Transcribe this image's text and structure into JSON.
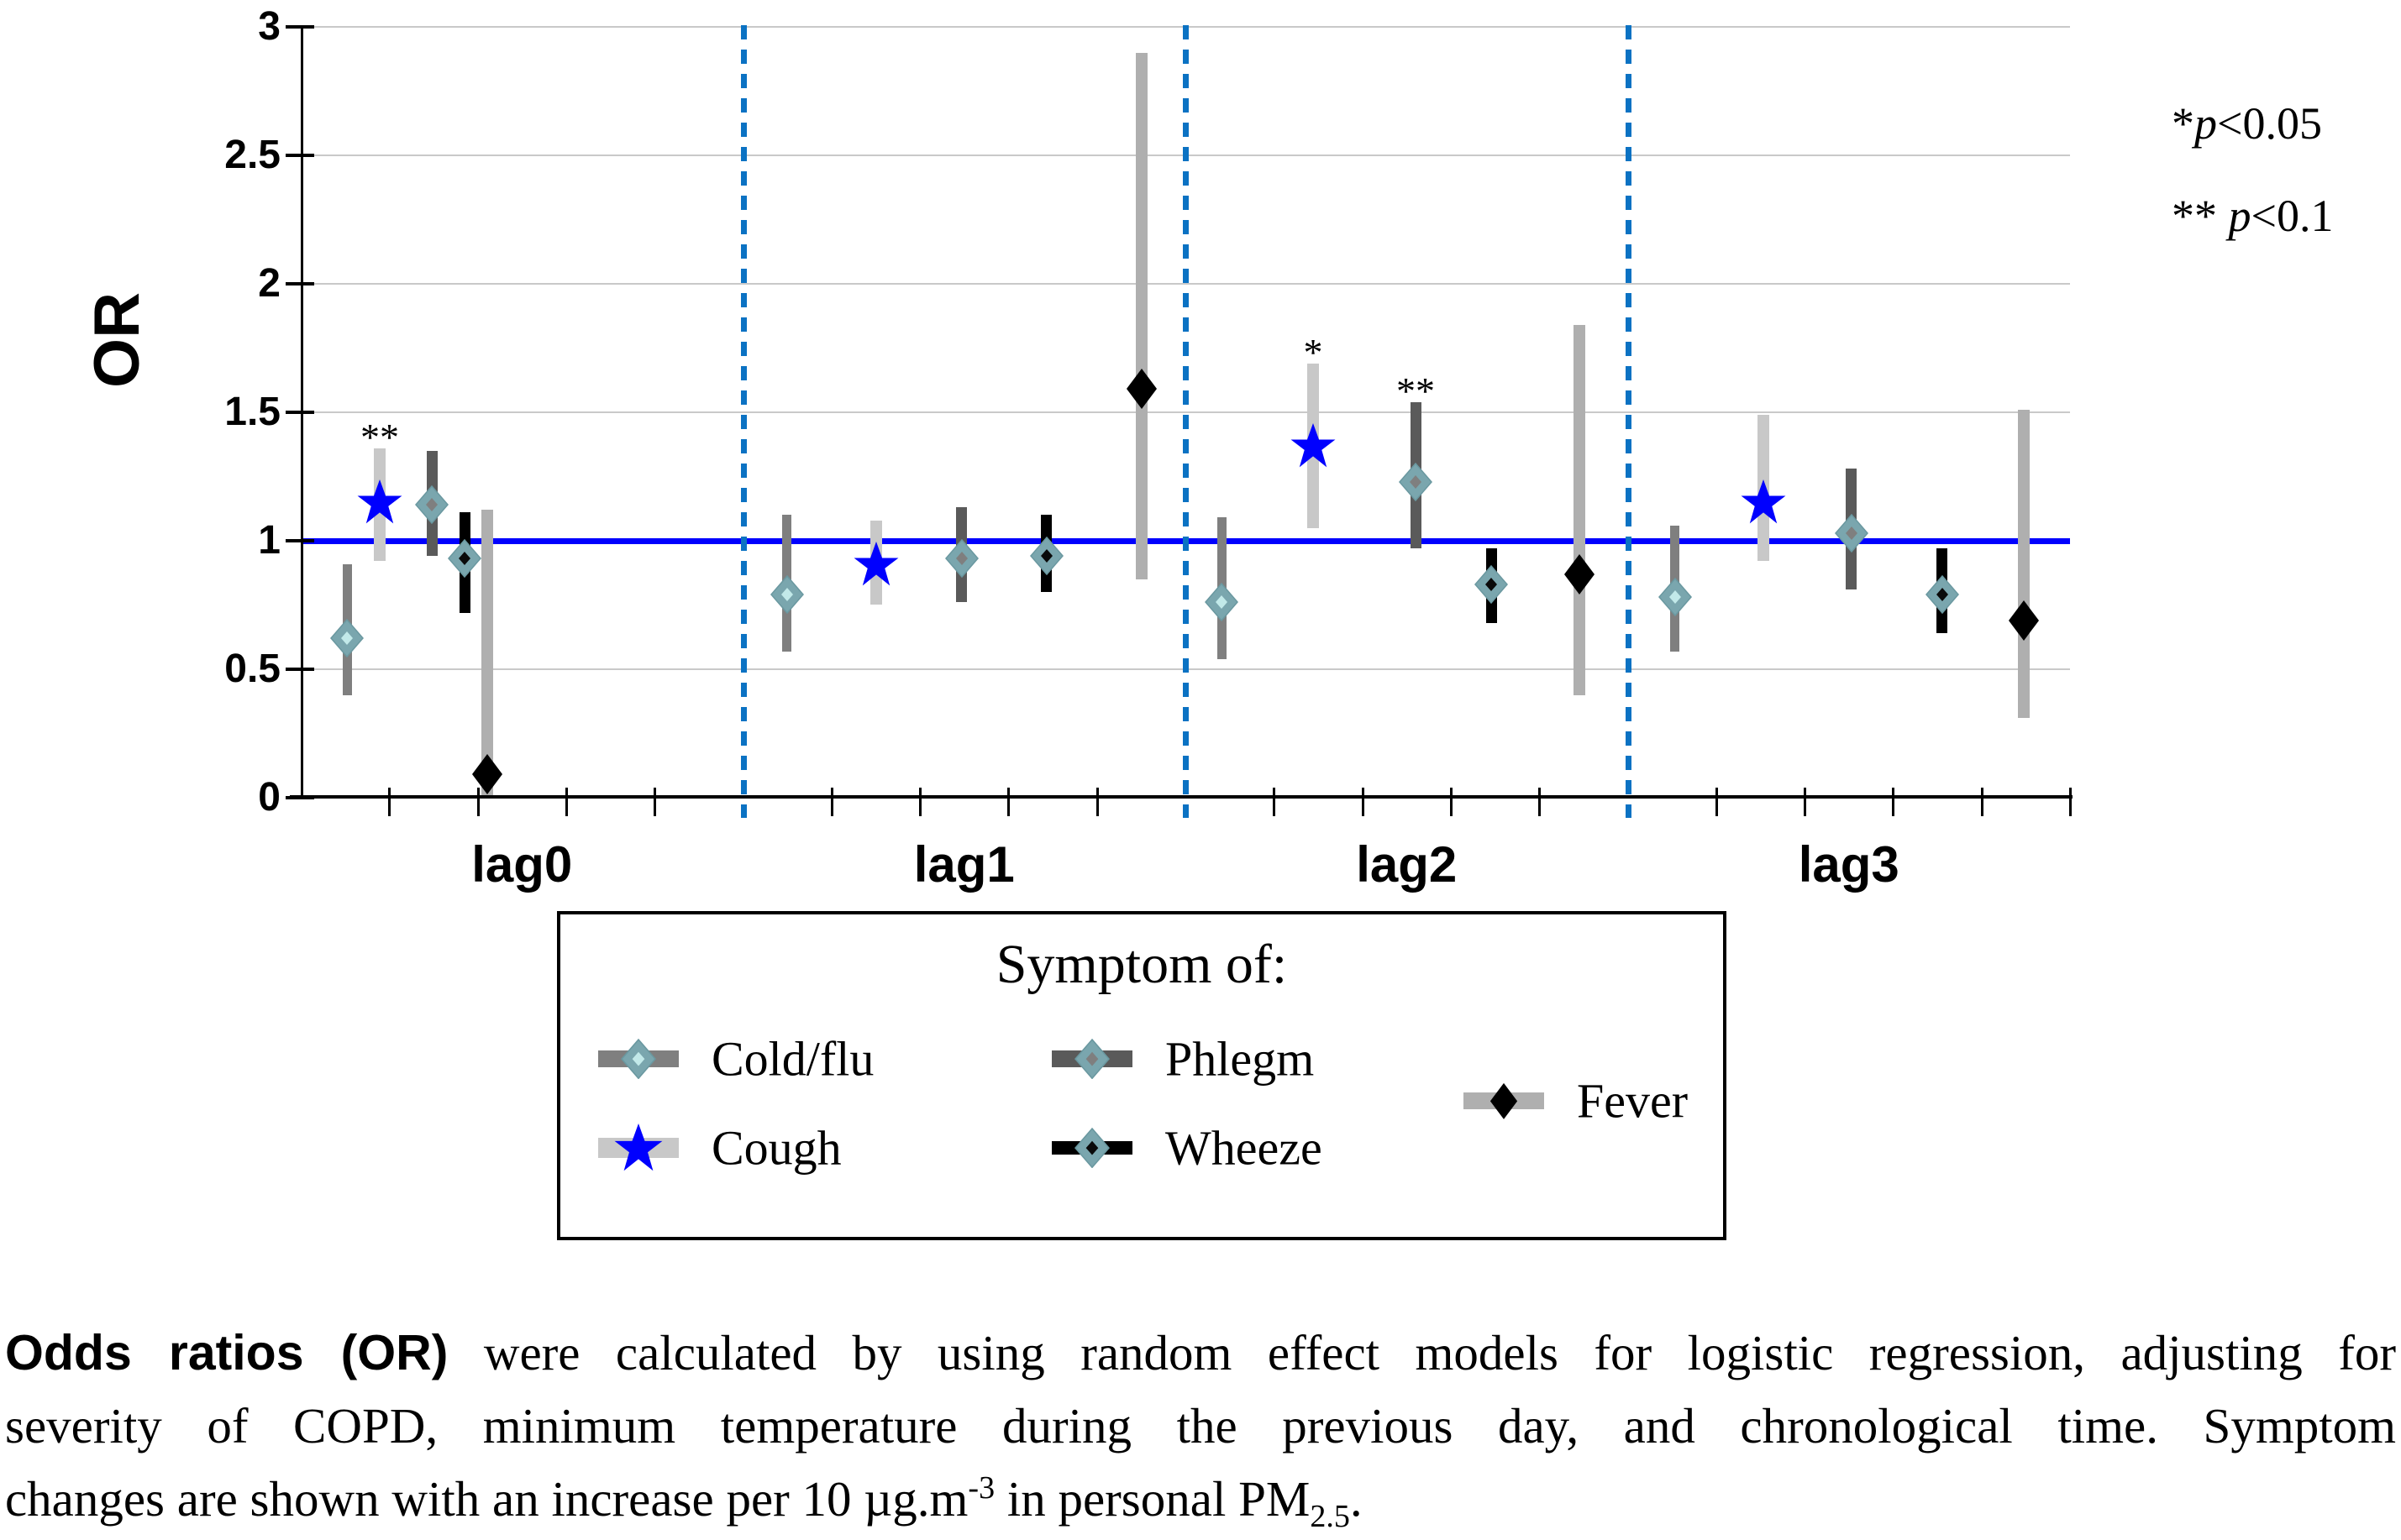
{
  "figure": {
    "y_axis_label": "OR",
    "y_tick_labels": [
      "0",
      "0.5",
      "1",
      "1.5",
      "2",
      "2.5",
      "3"
    ],
    "sig_notes": [
      {
        "stars": "*",
        "var": "p",
        "rest": "<0.05"
      },
      {
        "stars": "** ",
        "var": "p",
        "rest": "<0.1"
      }
    ]
  },
  "chart_data": {
    "type": "scatter",
    "title": "",
    "ylabel": "OR",
    "ylim": [
      0,
      3
    ],
    "y_ticks": [
      0,
      0.5,
      1,
      1.5,
      2,
      2.5,
      3
    ],
    "reference_line": 1.0,
    "grid": true,
    "groups": [
      "lag0",
      "lag1",
      "lag2",
      "lag3"
    ],
    "group_separators": "dashed blue vertical lines between lag groups",
    "series": [
      {
        "name": "Cold/flu",
        "marker": "diamond",
        "marker_color": "#7aa6ae",
        "marker_inner_color": "#c2e9e9",
        "bar_color": "#7f7f7f",
        "points": [
          {
            "group": "lag0",
            "or": 0.62,
            "lo": 0.4,
            "hi": 0.91,
            "sig": ""
          },
          {
            "group": "lag1",
            "or": 0.79,
            "lo": 0.57,
            "hi": 1.1,
            "sig": ""
          },
          {
            "group": "lag2",
            "or": 0.76,
            "lo": 0.54,
            "hi": 1.09,
            "sig": ""
          },
          {
            "group": "lag3",
            "or": 0.78,
            "lo": 0.57,
            "hi": 1.06,
            "sig": ""
          }
        ]
      },
      {
        "name": "Cough",
        "marker": "star",
        "marker_color": "#0000fe",
        "bar_color": "#c8c8c8",
        "points": [
          {
            "group": "lag0",
            "or": 1.15,
            "lo": 0.92,
            "hi": 1.36,
            "sig": "**"
          },
          {
            "group": "lag1",
            "or": 0.91,
            "lo": 0.75,
            "hi": 1.08,
            "sig": ""
          },
          {
            "group": "lag2",
            "or": 1.37,
            "lo": 1.05,
            "hi": 1.69,
            "sig": "*"
          },
          {
            "group": "lag3",
            "or": 1.15,
            "lo": 0.92,
            "hi": 1.49,
            "sig": ""
          }
        ]
      },
      {
        "name": "Phlegm",
        "marker": "diamond",
        "marker_color": "#7aa6ae",
        "marker_inner_color": "#7f7f7f",
        "bar_color": "#5a5a5a",
        "points": [
          {
            "group": "lag0",
            "or": 1.14,
            "lo": 0.94,
            "hi": 1.35,
            "sig": ""
          },
          {
            "group": "lag1",
            "or": 0.93,
            "lo": 0.76,
            "hi": 1.13,
            "sig": ""
          },
          {
            "group": "lag2",
            "or": 1.23,
            "lo": 0.97,
            "hi": 1.54,
            "sig": "**"
          },
          {
            "group": "lag3",
            "or": 1.03,
            "lo": 0.81,
            "hi": 1.28,
            "sig": ""
          }
        ]
      },
      {
        "name": "Wheeze",
        "marker": "diamond",
        "marker_color": "#7aa6ae",
        "marker_inner_color": "#0a0a0a",
        "bar_color": "#000000",
        "points": [
          {
            "group": "lag0",
            "or": 0.93,
            "lo": 0.72,
            "hi": 1.11,
            "sig": ""
          },
          {
            "group": "lag1",
            "or": 0.94,
            "lo": 0.8,
            "hi": 1.1,
            "sig": ""
          },
          {
            "group": "lag2",
            "or": 0.83,
            "lo": 0.68,
            "hi": 0.97,
            "sig": ""
          },
          {
            "group": "lag3",
            "or": 0.79,
            "lo": 0.64,
            "hi": 0.97,
            "sig": ""
          }
        ]
      },
      {
        "name": "Fever",
        "marker": "black-diamond",
        "marker_color": "#000000",
        "bar_color": "#afafaf",
        "points": [
          {
            "group": "lag0",
            "or": 0.09,
            "lo": 0.01,
            "hi": 1.12,
            "sig": ""
          },
          {
            "group": "lag1",
            "or": 1.59,
            "lo": 0.85,
            "hi": 2.9,
            "sig": ""
          },
          {
            "group": "lag2",
            "or": 0.87,
            "lo": 0.4,
            "hi": 1.84,
            "sig": ""
          },
          {
            "group": "lag3",
            "or": 0.69,
            "lo": 0.31,
            "hi": 1.51,
            "sig": ""
          }
        ]
      }
    ]
  },
  "legend": {
    "title": "Symptom of:",
    "entries": [
      {
        "label": "Cold/flu"
      },
      {
        "label": "Cough"
      },
      {
        "label": "Phlegm"
      },
      {
        "label": "Wheeze"
      },
      {
        "label": "Fever"
      }
    ]
  },
  "caption": {
    "lead": "Odds ratios (OR)",
    "line1_rest": " were calculated by using random effect models for logistic regression, adjusting for",
    "line2": "severity of COPD, minimum temperature during the previous day, and chronological time. Symptom",
    "line3_pre": "changes are shown with an increase per 10 µg.m",
    "line3_sup": "-3",
    "line3_mid": " in personal PM",
    "line3_sub": "2.5",
    "line3_end": "."
  }
}
